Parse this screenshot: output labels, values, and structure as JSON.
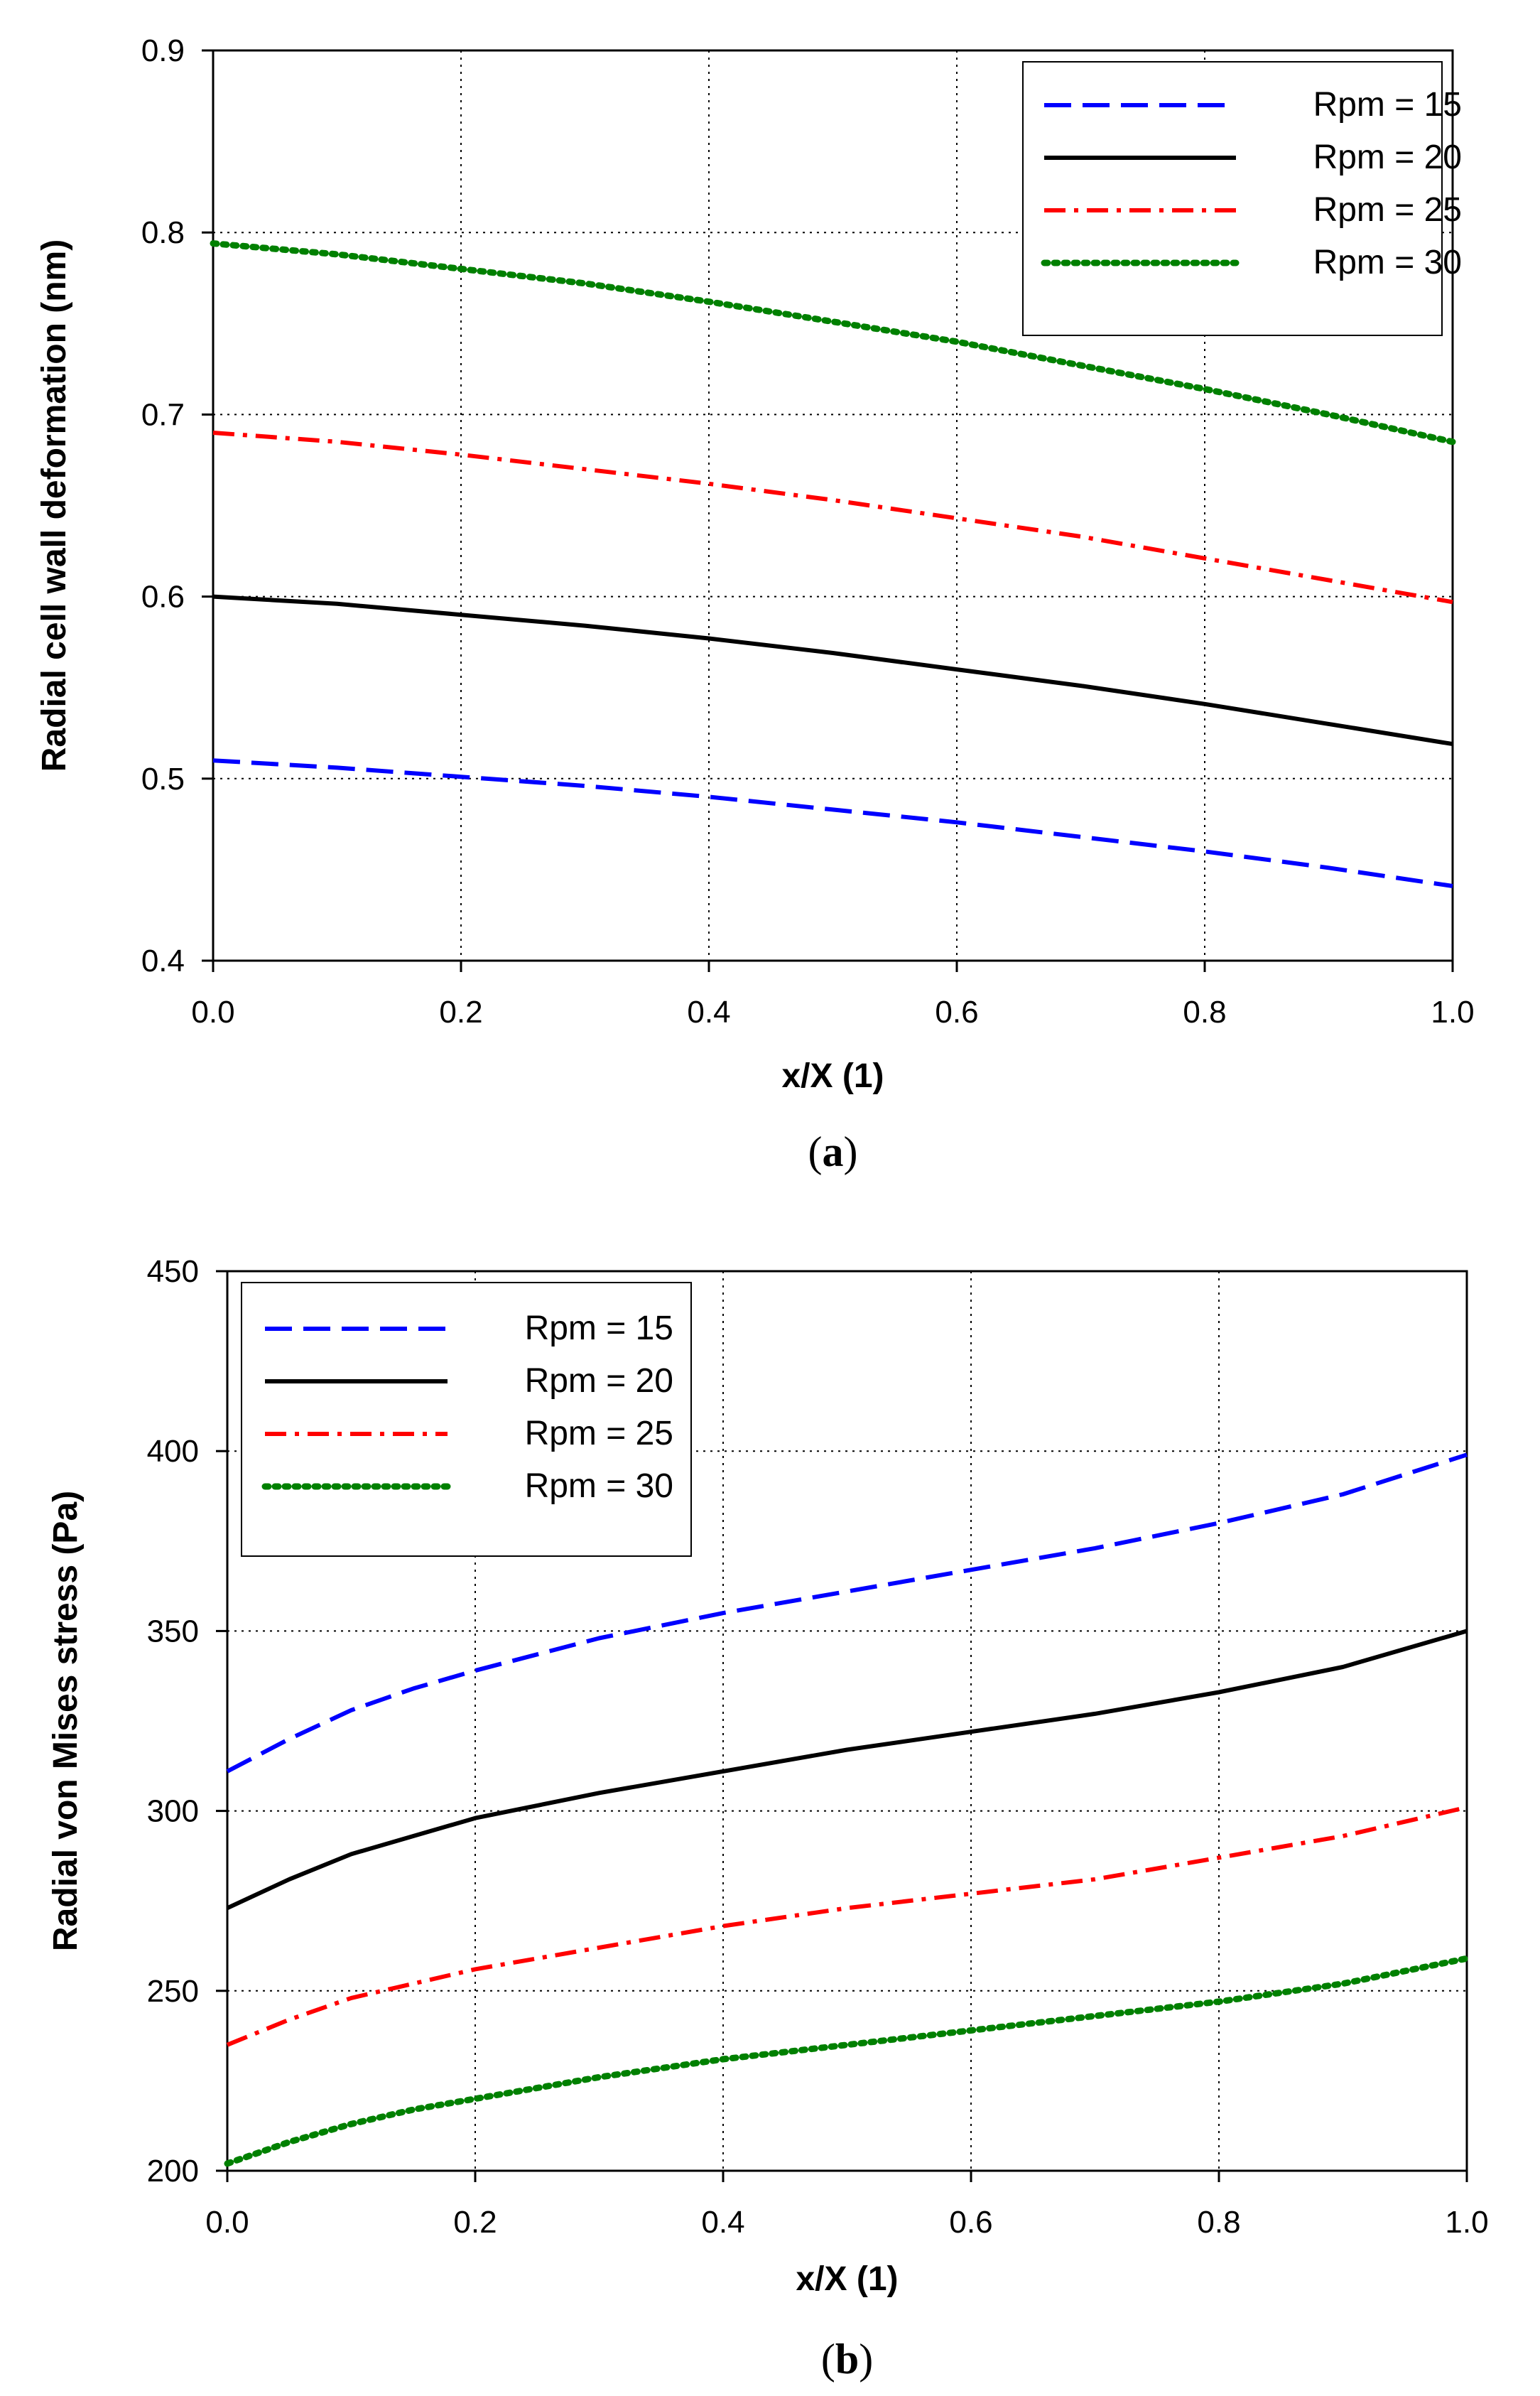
{
  "chart_data": [
    {
      "type": "line",
      "panel": "a",
      "caption": {
        "open": "(",
        "letter": "a",
        "close": ")"
      },
      "xlabel": "x/X (1)",
      "ylabel": "Radial cell wall deformation (nm)",
      "xlim": [
        0,
        1
      ],
      "ylim": [
        0.4,
        0.9
      ],
      "xticks": [
        0.0,
        0.2,
        0.4,
        0.6,
        0.8,
        1.0
      ],
      "xtick_labels": [
        "0.0",
        "0.2",
        "0.4",
        "0.6",
        "0.8",
        "1.0"
      ],
      "yticks": [
        0.4,
        0.5,
        0.6,
        0.7,
        0.8,
        0.9
      ],
      "ytick_labels": [
        "0.4",
        "0.5",
        "0.6",
        "0.7",
        "0.8",
        "0.9"
      ],
      "grid": true,
      "legend_position": "top-right",
      "x": [
        0.0,
        0.1,
        0.2,
        0.3,
        0.4,
        0.5,
        0.6,
        0.7,
        0.8,
        0.9,
        1.0
      ],
      "series": [
        {
          "name": "Rpm = 15",
          "color": "#0000ff",
          "style": "dash",
          "values": [
            0.51,
            0.506,
            0.501,
            0.496,
            0.49,
            0.483,
            0.476,
            0.468,
            0.46,
            0.451,
            0.441
          ]
        },
        {
          "name": "Rpm = 20",
          "color": "#000000",
          "style": "solid",
          "values": [
            0.6,
            0.596,
            0.59,
            0.584,
            0.577,
            0.569,
            0.56,
            0.551,
            0.541,
            0.53,
            0.519
          ]
        },
        {
          "name": "Rpm = 25",
          "color": "#ff0000",
          "style": "dashdot",
          "values": [
            0.69,
            0.685,
            0.678,
            0.67,
            0.662,
            0.653,
            0.643,
            0.633,
            0.621,
            0.609,
            0.597
          ]
        },
        {
          "name": "Rpm = 30",
          "color": "#008000",
          "style": "dot",
          "values": [
            0.794,
            0.788,
            0.78,
            0.772,
            0.762,
            0.751,
            0.74,
            0.727,
            0.714,
            0.7,
            0.685
          ]
        }
      ]
    },
    {
      "type": "line",
      "panel": "b",
      "caption": {
        "open": "(",
        "letter": "b",
        "close": ")"
      },
      "xlabel": "x/X (1)",
      "ylabel": "Radial von Mises stress (Pa)",
      "xlim": [
        0,
        1
      ],
      "ylim": [
        200,
        450
      ],
      "xticks": [
        0.0,
        0.2,
        0.4,
        0.6,
        0.8,
        1.0
      ],
      "xtick_labels": [
        "0.0",
        "0.2",
        "0.4",
        "0.6",
        "0.8",
        "1.0"
      ],
      "yticks": [
        200,
        250,
        300,
        350,
        400,
        450
      ],
      "ytick_labels": [
        "200",
        "250",
        "300",
        "350",
        "400",
        "450"
      ],
      "grid": true,
      "legend_position": "top-left",
      "x": [
        0.0,
        0.05,
        0.1,
        0.15,
        0.2,
        0.3,
        0.4,
        0.5,
        0.6,
        0.7,
        0.8,
        0.9,
        1.0
      ],
      "series": [
        {
          "name": "Rpm = 15",
          "color": "#0000ff",
          "style": "dash",
          "values": [
            311,
            320,
            328,
            334,
            339,
            348,
            355,
            361,
            367,
            373,
            380,
            388,
            399
          ]
        },
        {
          "name": "Rpm = 20",
          "color": "#000000",
          "style": "solid",
          "values": [
            273,
            281,
            288,
            293,
            298,
            305,
            311,
            317,
            322,
            327,
            333,
            340,
            350
          ]
        },
        {
          "name": "Rpm = 25",
          "color": "#ff0000",
          "style": "dashdot",
          "values": [
            235,
            242,
            248,
            252,
            256,
            262,
            268,
            273,
            277,
            281,
            287,
            293,
            301
          ]
        },
        {
          "name": "Rpm = 30",
          "color": "#008000",
          "style": "dot",
          "values": [
            202,
            208,
            213,
            217,
            220,
            226,
            231,
            235,
            239,
            243,
            247,
            252,
            259
          ]
        }
      ]
    }
  ]
}
